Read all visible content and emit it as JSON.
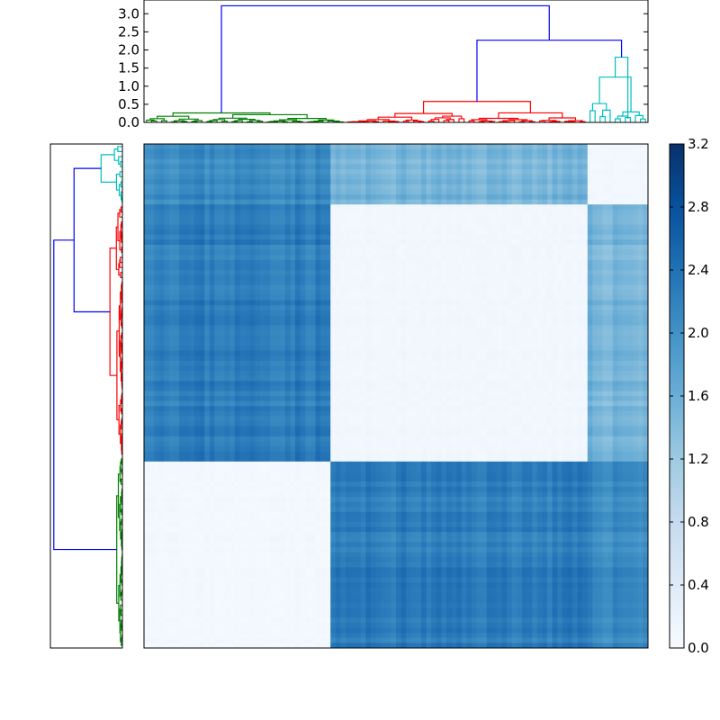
{
  "chart_data": [
    {
      "type": "dendrogram",
      "orientation": "top",
      "yticks": [
        "0.0",
        "0.5",
        "1.0",
        "1.5",
        "2.0",
        "2.5",
        "3.0"
      ],
      "ylim": [
        0,
        3.38
      ],
      "clusters": [
        {
          "color": "#008000",
          "leaf_range": [
            0,
            40
          ],
          "max_height": 0.3
        },
        {
          "color": "#ff0000",
          "leaf_range": [
            40,
            88
          ],
          "max_height": 0.62
        },
        {
          "color": "#00bfbf",
          "leaf_range": [
            88,
            100
          ],
          "max_height": 1.8
        }
      ],
      "top_merges": [
        {
          "height": 1.25,
          "color": "#00bfbf"
        },
        {
          "height": 2.27,
          "color": "#0000ff"
        },
        {
          "height": 3.22,
          "color": "#0000ff"
        }
      ]
    },
    {
      "type": "dendrogram",
      "orientation": "left",
      "clusters": [
        {
          "color": "#00bfbf",
          "position": "top"
        },
        {
          "color": "#ff0000",
          "position": "middle"
        },
        {
          "color": "#008000",
          "position": "bottom"
        }
      ],
      "link_color": "#0000ff"
    },
    {
      "type": "heatmap",
      "colormap": "Blues",
      "block_order": [
        "A",
        "B",
        "C"
      ],
      "block_values": {
        "A-A": 0.05,
        "B-B": 0.08,
        "C-C": 0.06,
        "A-B": 2.25,
        "A-C": 2.1,
        "B-C": 1.5
      },
      "row_blocks_top_to_bottom": [
        "C",
        "B",
        "A"
      ],
      "column_blocks_left_to_right": [
        "A",
        "B",
        "C"
      ]
    },
    {
      "type": "colorbar",
      "colormap": "Blues",
      "range": [
        0.0,
        3.2
      ],
      "ticks": [
        "0.0",
        "0.4",
        "0.8",
        "1.2",
        "1.6",
        "2.0",
        "2.4",
        "2.8",
        "3.2"
      ]
    }
  ]
}
